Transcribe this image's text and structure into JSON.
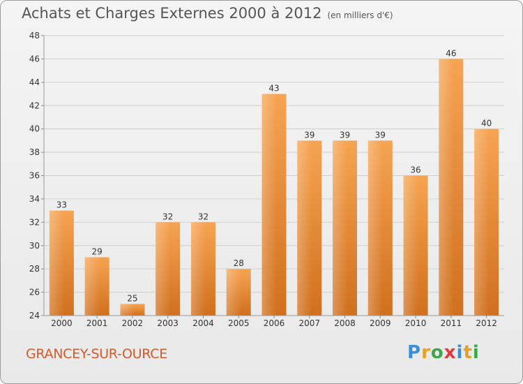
{
  "title": "Achats et Charges Externes 2000 à 2012",
  "subtitle": "(en milliers d'€)",
  "city": "GRANCEY-SUR-OURCE",
  "logo": {
    "letters": [
      {
        "ch": "P",
        "color": "#3a8fd6"
      },
      {
        "ch": "r",
        "color": "#e8a020"
      },
      {
        "ch": "o",
        "color": "#3aa84a"
      },
      {
        "ch": "x",
        "color": "#e03a3a"
      },
      {
        "ch": "i",
        "color": "#3a8fd6"
      },
      {
        "ch": "t",
        "color": "#e8a020"
      },
      {
        "ch": "i",
        "color": "#3aa84a"
      }
    ]
  },
  "colors": {
    "bar_top": "#f6a452",
    "bar_bottom": "#d0701e",
    "grid": "#cfcfcf",
    "axis_text": "#333333"
  },
  "chart_data": {
    "type": "bar",
    "categories": [
      "2000",
      "2001",
      "2002",
      "2003",
      "2004",
      "2005",
      "2006",
      "2007",
      "2008",
      "2009",
      "2010",
      "2011",
      "2012"
    ],
    "values": [
      33,
      29,
      25,
      32,
      32,
      28,
      43,
      39,
      39,
      39,
      36,
      46,
      40
    ],
    "ylim": [
      24,
      48
    ],
    "yticks": [
      24,
      26,
      28,
      30,
      32,
      34,
      36,
      38,
      40,
      42,
      44,
      46,
      48
    ],
    "grid": true
  }
}
